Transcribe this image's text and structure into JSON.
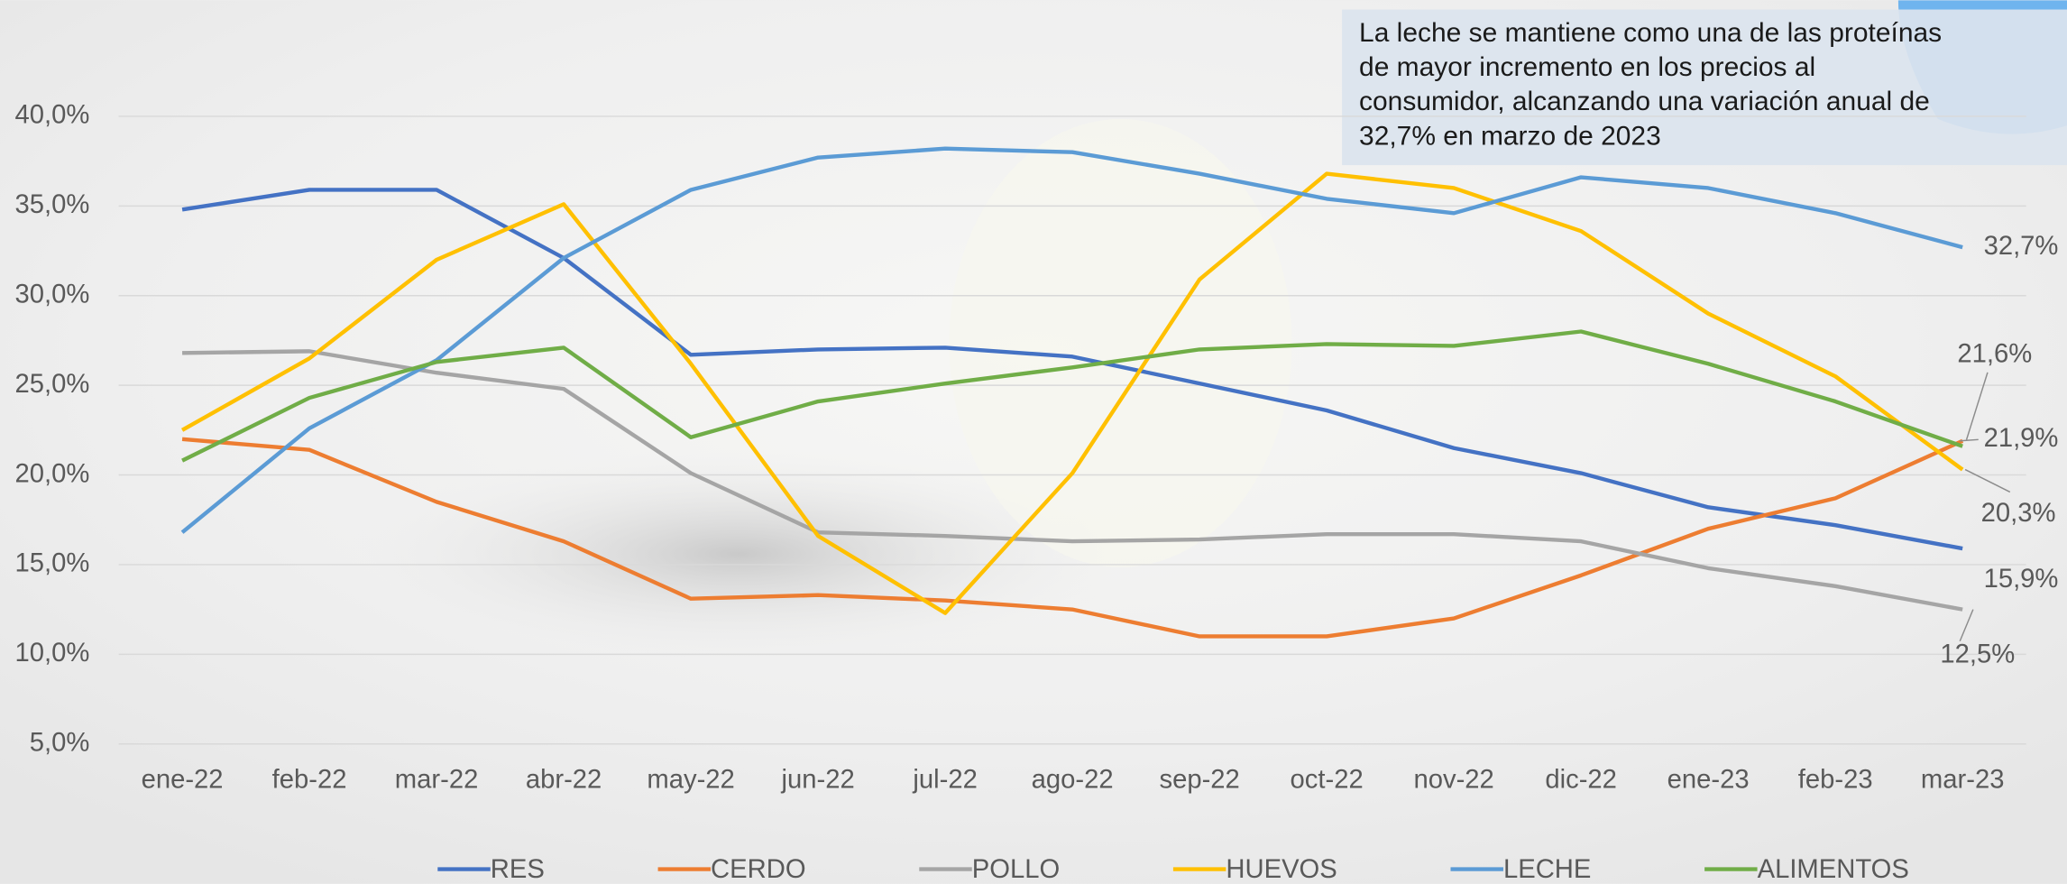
{
  "chart_data": {
    "type": "line",
    "annotation": [
      "La leche se mantiene como una de las proteínas",
      "de mayor incremento en los precios al",
      "consumidor, alcanzando una variación anual de",
      "32,7% en marzo de 2023"
    ],
    "categories": [
      "ene-22",
      "feb-22",
      "mar-22",
      "abr-22",
      "may-22",
      "jun-22",
      "jul-22",
      "ago-22",
      "sep-22",
      "oct-22",
      "nov-22",
      "dic-22",
      "ene-23",
      "feb-23",
      "mar-23"
    ],
    "ylim": [
      5,
      40
    ],
    "yticks": [
      {
        "value": 5,
        "label": "5,0%"
      },
      {
        "value": 10,
        "label": "10,0%"
      },
      {
        "value": 15,
        "label": "15,0%"
      },
      {
        "value": 20,
        "label": "20,0%"
      },
      {
        "value": 25,
        "label": "25,0%"
      },
      {
        "value": 30,
        "label": "30,0%"
      },
      {
        "value": 35,
        "label": "35,0%"
      },
      {
        "value": 40,
        "label": "40,0%"
      }
    ],
    "grid": true,
    "legend": "bottom",
    "series": [
      {
        "name": "RES",
        "color": "#4472c4",
        "values": [
          34.8,
          35.9,
          35.9,
          32.1,
          26.7,
          27.0,
          27.1,
          26.6,
          25.1,
          23.6,
          21.5,
          20.1,
          18.2,
          17.2,
          15.9
        ],
        "value_labels": [
          null,
          null,
          null,
          null,
          null,
          null,
          null,
          null,
          null,
          null,
          null,
          null,
          null,
          null,
          "15,9%"
        ]
      },
      {
        "name": "CERDO",
        "color": "#ed7d31",
        "values": [
          22.0,
          21.4,
          18.5,
          16.3,
          13.1,
          13.3,
          13.0,
          12.5,
          11.0,
          11.0,
          12.0,
          14.4,
          17.0,
          18.7,
          21.9
        ],
        "value_labels": [
          null,
          null,
          null,
          null,
          null,
          null,
          null,
          null,
          null,
          null,
          null,
          null,
          null,
          null,
          "21,9%"
        ]
      },
      {
        "name": "POLLO",
        "color": "#a5a5a5",
        "values": [
          26.8,
          26.9,
          25.7,
          24.8,
          20.1,
          16.8,
          16.6,
          16.3,
          16.4,
          16.7,
          16.7,
          16.3,
          14.8,
          13.8,
          12.5
        ],
        "value_labels": [
          null,
          null,
          null,
          null,
          null,
          null,
          null,
          null,
          null,
          null,
          null,
          null,
          null,
          null,
          "12,5%"
        ]
      },
      {
        "name": "HUEVOS",
        "color": "#ffc000",
        "values": [
          22.5,
          26.5,
          32.0,
          35.1,
          26.2,
          16.6,
          12.3,
          20.1,
          30.9,
          36.8,
          36.0,
          33.6,
          29.0,
          25.5,
          20.3
        ],
        "value_labels": [
          null,
          null,
          null,
          null,
          null,
          null,
          null,
          null,
          null,
          null,
          null,
          null,
          null,
          null,
          "20,3%"
        ]
      },
      {
        "name": "LECHE",
        "color": "#5b9bd5",
        "values": [
          16.8,
          22.6,
          26.4,
          32.1,
          35.9,
          37.7,
          38.2,
          38.0,
          36.8,
          35.4,
          34.6,
          36.6,
          36.0,
          34.6,
          32.7
        ],
        "value_labels": [
          null,
          null,
          null,
          null,
          null,
          null,
          null,
          null,
          null,
          null,
          null,
          null,
          null,
          null,
          "32,7%"
        ]
      },
      {
        "name": "ALIMENTOS",
        "color": "#70ad47",
        "values": [
          20.8,
          24.3,
          26.3,
          27.1,
          22.1,
          24.1,
          25.1,
          26.0,
          27.0,
          27.3,
          27.2,
          28.0,
          26.2,
          24.1,
          21.6
        ],
        "value_labels": [
          null,
          null,
          null,
          null,
          null,
          null,
          null,
          null,
          null,
          null,
          null,
          null,
          null,
          null,
          "21,6%"
        ]
      }
    ]
  }
}
